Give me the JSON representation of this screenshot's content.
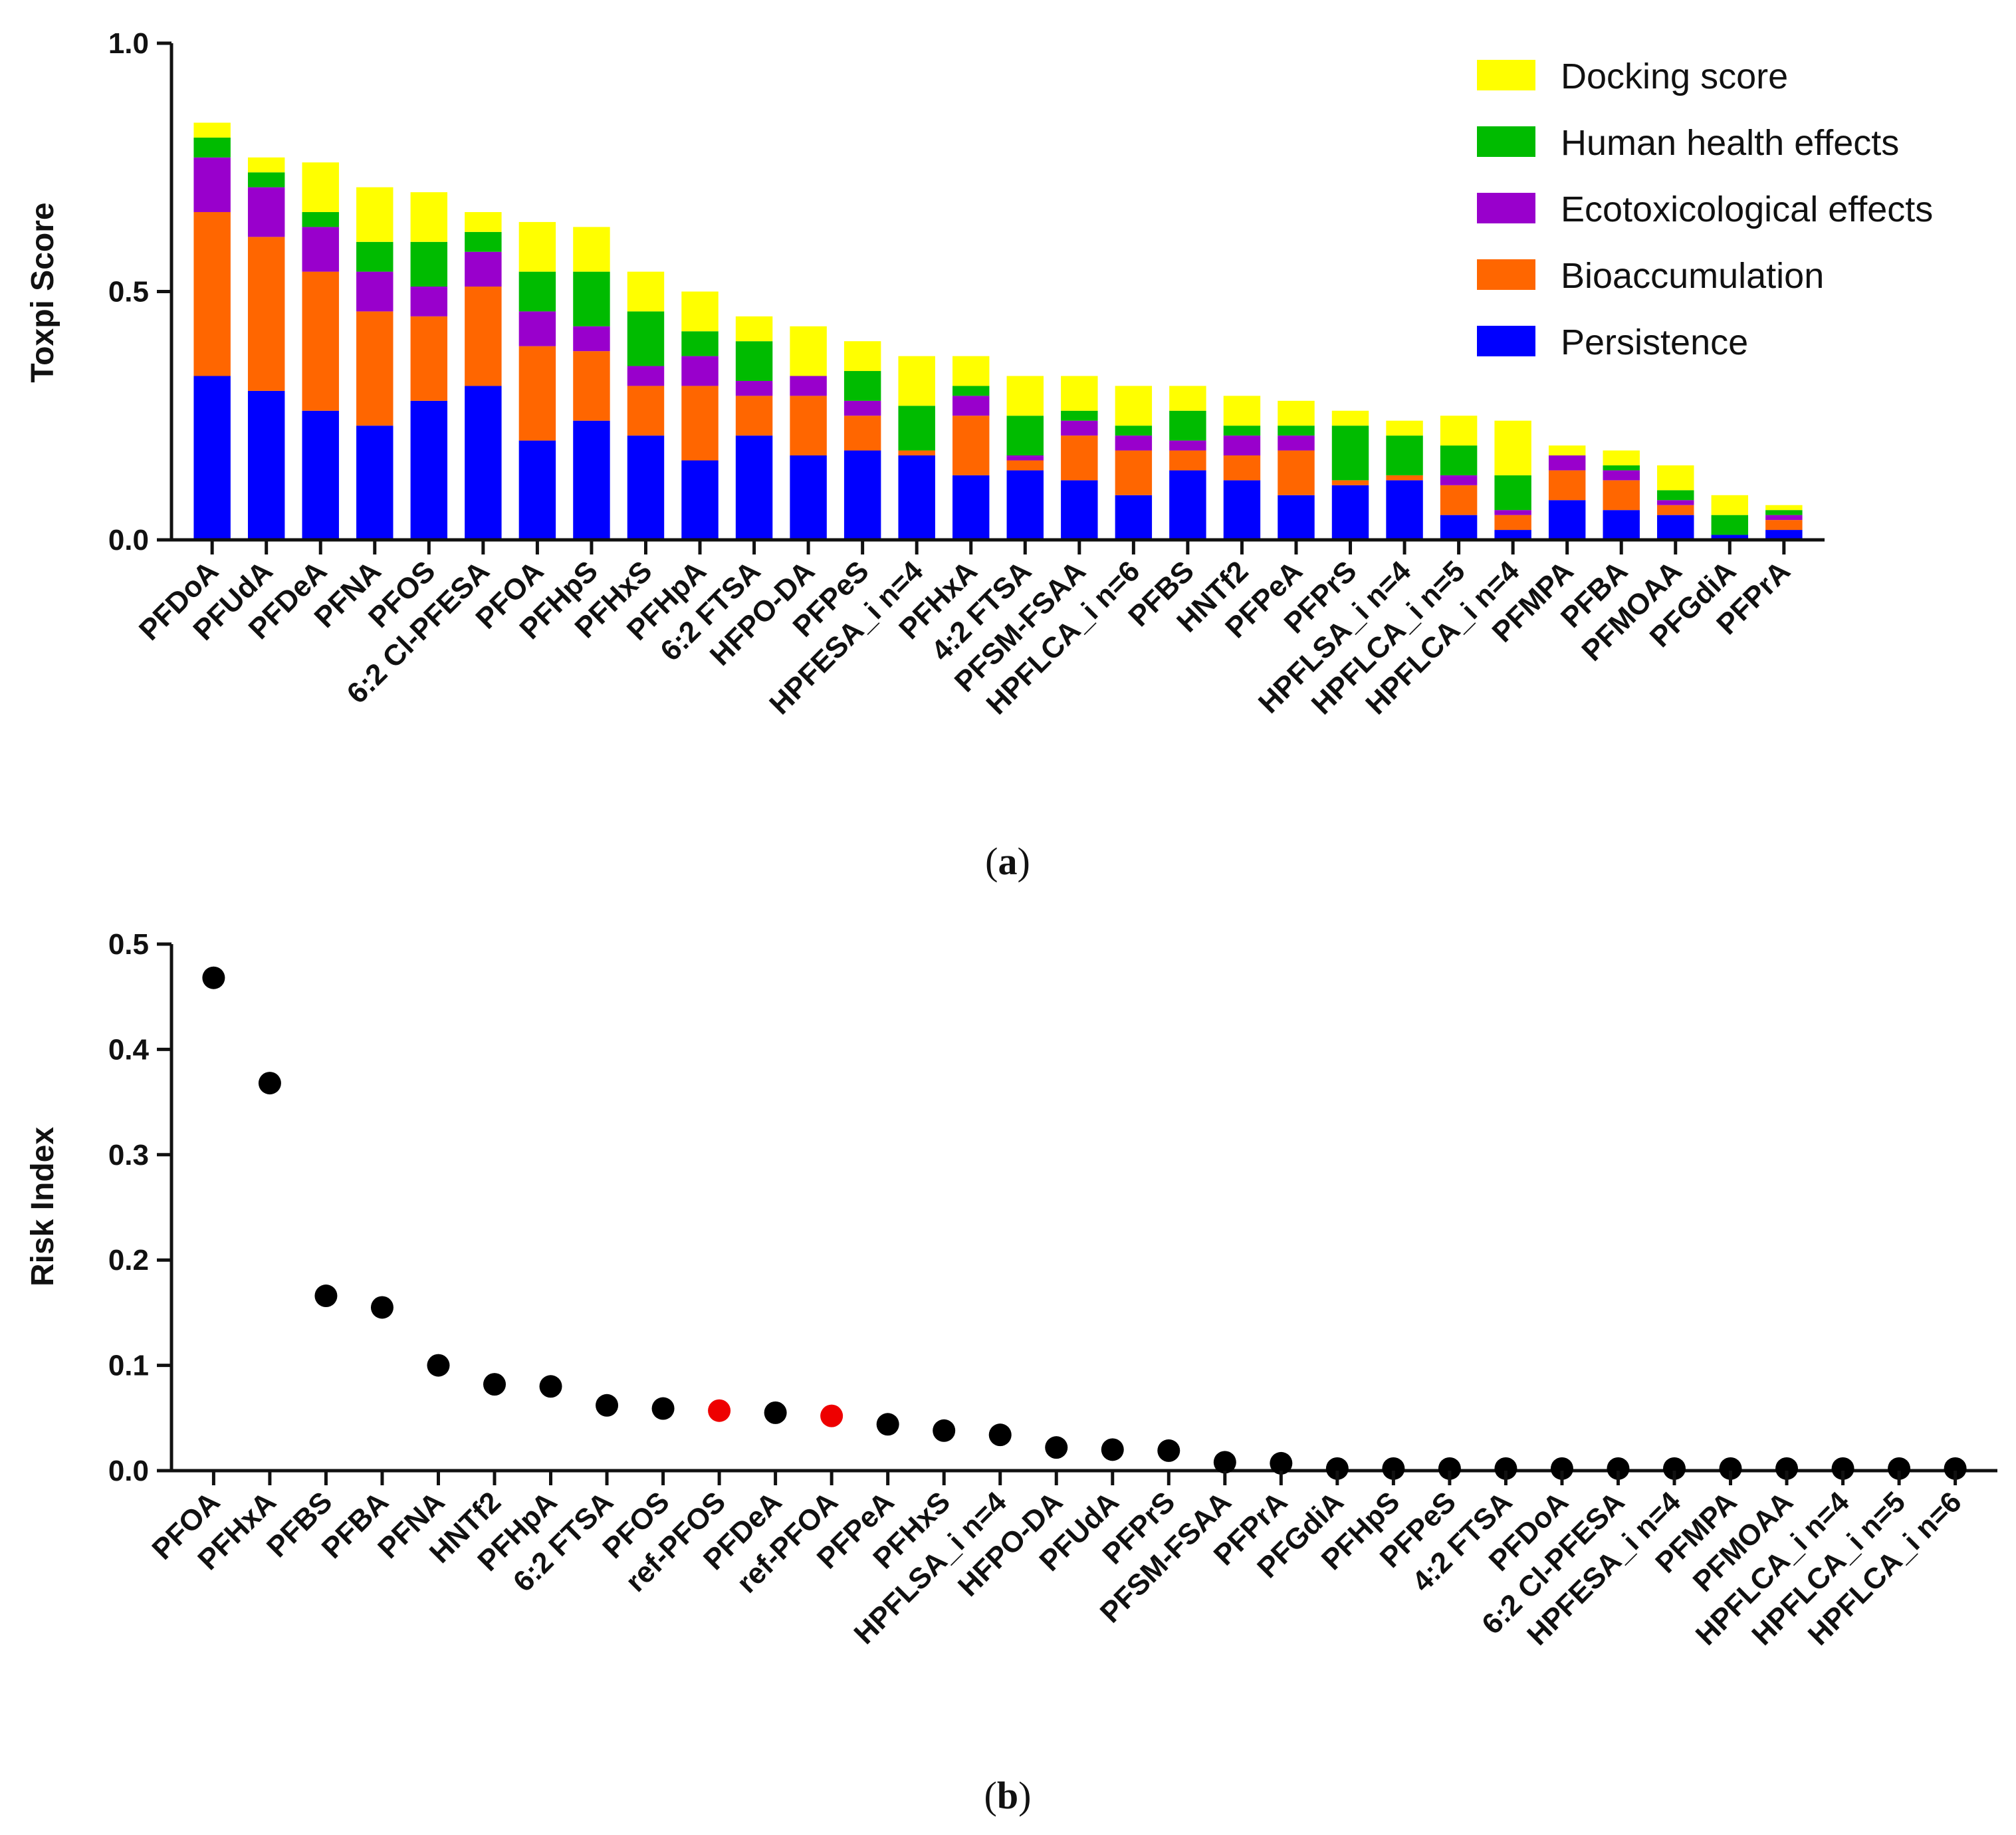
{
  "chart_data": [
    {
      "type": "bar",
      "stacked": true,
      "caption": "(a)",
      "caption_letter": "a",
      "ylabel": "Toxpi Score",
      "ylim": [
        0,
        1.0
      ],
      "yticks": [
        "0.0",
        "0.5",
        "1.0"
      ],
      "ytick_values": [
        0,
        0.5,
        1.0
      ],
      "legend_position": "top-right",
      "categories": [
        "PFDoA",
        "PFUdA",
        "PFDeA",
        "PFNA",
        "PFOS",
        "6:2 Cl-PFESA",
        "PFOA",
        "PFHpS",
        "PFHxS",
        "PFHpA",
        "6:2 FTSA",
        "HFPO-DA",
        "PFPeS",
        "HPFESA_i n=4",
        "PFHxA",
        "4:2 FTSA",
        "PFSM-FSAA",
        "HPFLCA_i n=6",
        "PFBS",
        "HNTf2",
        "PFPeA",
        "PFPrS",
        "HPFLSA_i n=4",
        "HPFLCA_i n=5",
        "HPFLCA_i n=4",
        "PFMPA",
        "PFBA",
        "PFMOAA",
        "PFGdiA",
        "PFPrA"
      ],
      "series": [
        {
          "name": "Persistence",
          "color": "#0000FF",
          "values": [
            0.33,
            0.3,
            0.26,
            0.23,
            0.28,
            0.31,
            0.2,
            0.24,
            0.21,
            0.16,
            0.21,
            0.17,
            0.18,
            0.17,
            0.13,
            0.14,
            0.12,
            0.09,
            0.14,
            0.12,
            0.09,
            0.11,
            0.12,
            0.05,
            0.02,
            0.08,
            0.06,
            0.05,
            0.01,
            0.02
          ]
        },
        {
          "name": "Bioaccumulation",
          "color": "#FF6600",
          "values": [
            0.33,
            0.31,
            0.28,
            0.23,
            0.17,
            0.2,
            0.19,
            0.14,
            0.1,
            0.15,
            0.08,
            0.12,
            0.07,
            0.01,
            0.12,
            0.02,
            0.09,
            0.09,
            0.04,
            0.05,
            0.09,
            0.01,
            0.01,
            0.06,
            0.03,
            0.06,
            0.06,
            0.02,
            0.0,
            0.02
          ]
        },
        {
          "name": "Ecotoxicological effects",
          "color": "#9900CC",
          "values": [
            0.11,
            0.1,
            0.09,
            0.08,
            0.06,
            0.07,
            0.07,
            0.05,
            0.04,
            0.06,
            0.03,
            0.04,
            0.03,
            0.0,
            0.04,
            0.01,
            0.03,
            0.03,
            0.02,
            0.04,
            0.03,
            0.0,
            0.0,
            0.02,
            0.01,
            0.03,
            0.02,
            0.01,
            0.0,
            0.01
          ]
        },
        {
          "name": "Human health effects",
          "color": "#00BB00",
          "values": [
            0.04,
            0.03,
            0.03,
            0.06,
            0.09,
            0.04,
            0.08,
            0.11,
            0.11,
            0.05,
            0.08,
            0.0,
            0.06,
            0.09,
            0.02,
            0.08,
            0.02,
            0.02,
            0.06,
            0.02,
            0.02,
            0.11,
            0.08,
            0.06,
            0.07,
            0.0,
            0.01,
            0.02,
            0.04,
            0.01
          ]
        },
        {
          "name": "Docking score",
          "color": "#FFFF00",
          "values": [
            0.03,
            0.03,
            0.1,
            0.11,
            0.1,
            0.04,
            0.1,
            0.09,
            0.08,
            0.08,
            0.05,
            0.1,
            0.06,
            0.1,
            0.06,
            0.08,
            0.07,
            0.08,
            0.05,
            0.06,
            0.05,
            0.03,
            0.03,
            0.06,
            0.11,
            0.02,
            0.03,
            0.05,
            0.04,
            0.01
          ]
        }
      ]
    },
    {
      "type": "scatter",
      "caption": "(b)",
      "caption_letter": "b",
      "ylabel": "Risk Index",
      "ylim": [
        0,
        0.5
      ],
      "yticks": [
        "0.0",
        "0.1",
        "0.2",
        "0.3",
        "0.4",
        "0.5"
      ],
      "ytick_values": [
        0,
        0.1,
        0.2,
        0.3,
        0.4,
        0.5
      ],
      "colors": {
        "default": "#000000",
        "reference": "#EE0000"
      },
      "categories": [
        "PFOA",
        "PFHxA",
        "PFBS",
        "PFBA",
        "PFNA",
        "HNTf2",
        "PFHpA",
        "6:2 FTSA",
        "PFOS",
        "ref-PFOS",
        "PFDeA",
        "ref-PFOA",
        "PFPeA",
        "PFHxS",
        "HPFLSA_i n=4",
        "HFPO-DA",
        "PFUdA",
        "PFPrS",
        "PFSM-FSAA",
        "PFPrA",
        "PFGdiA",
        "PFHpS",
        "PFPeS",
        "4:2 FTSA",
        "PFDoA",
        "6:2 Cl-PFESA",
        "HPFESA_i n=4",
        "PFMPA",
        "PFMOAA",
        "HPFLCA_i n=4",
        "HPFLCA_i n=5",
        "HPFLCA_i n=6"
      ],
      "values": [
        0.468,
        0.368,
        0.166,
        0.155,
        0.1,
        0.082,
        0.08,
        0.062,
        0.059,
        0.057,
        0.055,
        0.052,
        0.044,
        0.038,
        0.034,
        0.022,
        0.02,
        0.019,
        0.008,
        0.007,
        0.002,
        0.002,
        0.002,
        0.002,
        0.002,
        0.002,
        0.002,
        0.002,
        0.002,
        0.002,
        0.002,
        0.002
      ],
      "highlighted": [
        "ref-PFOS",
        "ref-PFOA"
      ]
    }
  ]
}
